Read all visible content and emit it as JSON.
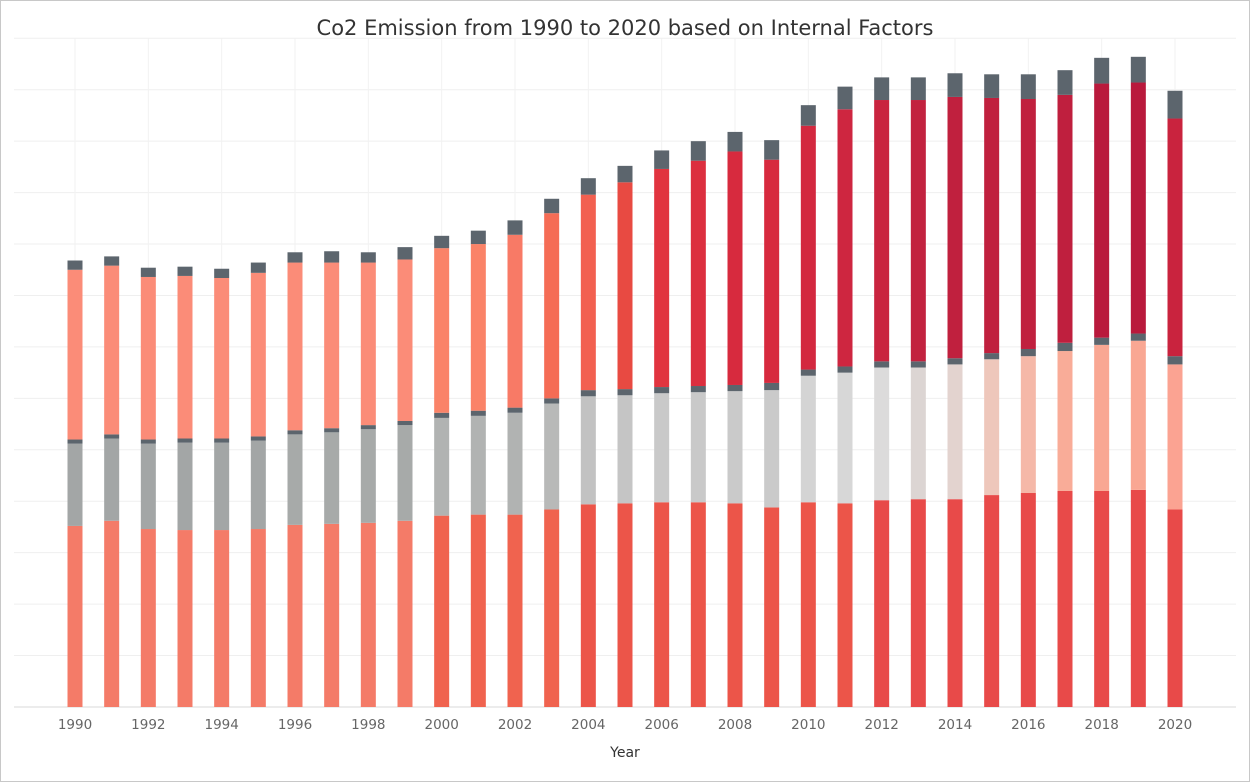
{
  "chart_data": {
    "type": "bar",
    "stacked": true,
    "title": "Co2 Emission  from 1990 to 2020 based on Internal Factors",
    "xlabel": "Year",
    "ylabel": "",
    "grid": true,
    "ylim": [
      0,
      1320
    ],
    "x_tick_labels": [
      "1990",
      "1992",
      "1994",
      "1996",
      "1998",
      "2000",
      "2002",
      "2004",
      "2006",
      "2008",
      "2010",
      "2012",
      "2014",
      "2016",
      "2018",
      "2020"
    ],
    "categories": [
      "1990",
      "1991",
      "1992",
      "1993",
      "1994",
      "1995",
      "1996",
      "1997",
      "1998",
      "1999",
      "2000",
      "2001",
      "2002",
      "2003",
      "2004",
      "2005",
      "2006",
      "2007",
      "2008",
      "2009",
      "2010",
      "2011",
      "2012",
      "2013",
      "2014",
      "2015",
      "2016",
      "2017",
      "2018",
      "2019",
      "2020"
    ],
    "series": [
      {
        "values": [
          352,
          362,
          346,
          344,
          344,
          346,
          354,
          356,
          358,
          362,
          372,
          374,
          374,
          384,
          394,
          396,
          398,
          398,
          396,
          388,
          398,
          396,
          402,
          404,
          404,
          412,
          416,
          420,
          420,
          422,
          384
        ]
      },
      {
        "values": [
          160,
          160,
          166,
          170,
          170,
          172,
          176,
          178,
          182,
          186,
          190,
          192,
          198,
          206,
          210,
          210,
          212,
          214,
          218,
          228,
          246,
          254,
          258,
          256,
          262,
          264,
          266,
          272,
          284,
          290,
          282
        ]
      },
      {
        "values": [
          8,
          8,
          8,
          8,
          8,
          8,
          8,
          8,
          8,
          8,
          10,
          10,
          10,
          10,
          12,
          12,
          12,
          12,
          12,
          14,
          12,
          12,
          12,
          12,
          12,
          12,
          14,
          16,
          14,
          14,
          16
        ]
      },
      {
        "values": [
          330,
          328,
          316,
          316,
          312,
          318,
          326,
          322,
          316,
          314,
          320,
          324,
          336,
          360,
          380,
          402,
          424,
          438,
          454,
          434,
          474,
          500,
          508,
          508,
          508,
          496,
          486,
          482,
          494,
          488,
          462
        ]
      },
      {
        "values": [
          18,
          18,
          18,
          18,
          18,
          20,
          20,
          22,
          20,
          24,
          24,
          26,
          28,
          28,
          32,
          32,
          36,
          38,
          38,
          38,
          40,
          44,
          44,
          44,
          46,
          46,
          48,
          48,
          50,
          50,
          54
        ]
      }
    ],
    "colors": [
      [
        "#f47b68",
        "#f47b68",
        "#f47b68",
        "#f47b68",
        "#f47b68",
        "#f47b68",
        "#f47b68",
        "#f47b68",
        "#f47b68",
        "#f47b68",
        "#f0634f",
        "#f0634f",
        "#f0634f",
        "#f0634f",
        "#ec5549",
        "#ec5549",
        "#ec5549",
        "#ec5549",
        "#ec5549",
        "#ec5549",
        "#ec5549",
        "#ec5549",
        "#e84a49",
        "#e84a49",
        "#e84a49",
        "#e84a49",
        "#e84a49",
        "#e84a49",
        "#e84a49",
        "#e84a49",
        "#e84a49"
      ],
      [
        "#a3a6a6",
        "#a3a6a6",
        "#a3a6a6",
        "#a3a6a6",
        "#a3a6a6",
        "#a3a6a6",
        "#a7aaa9",
        "#a7aaa9",
        "#a7aaa9",
        "#a7aaa9",
        "#b1b3b2",
        "#b1b3b2",
        "#b1b3b2",
        "#b8b9b8",
        "#c2c2c2",
        "#c5c5c5",
        "#c9c9c9",
        "#c9c9c9",
        "#cacaca",
        "#cacaca",
        "#d4d4d4",
        "#d7d7d7",
        "#dcdbdb",
        "#dcd5d3",
        "#e3d3cf",
        "#eec7bb",
        "#f5b8a8",
        "#f9ac98",
        "#f9a793",
        "#f9a793",
        "#fba392"
      ],
      [
        "#5c656d",
        "#5c656d",
        "#5c656d",
        "#5c656d",
        "#5c656d",
        "#5c656d",
        "#5c656d",
        "#5c656d",
        "#5c656d",
        "#5c656d",
        "#5c656d",
        "#5c656d",
        "#5c656d",
        "#5c656d",
        "#5c656d",
        "#5c656d",
        "#5c656d",
        "#5c656d",
        "#5c656d",
        "#5c656d",
        "#5c656d",
        "#5c656d",
        "#5c656d",
        "#5c656d",
        "#5c656d",
        "#5c656d",
        "#5c656d",
        "#5c656d",
        "#5c656d",
        "#5c656d",
        "#5c656d"
      ],
      [
        "#fb8c78",
        "#fb8c78",
        "#fb8c78",
        "#fb8c78",
        "#fb8c78",
        "#fb8c78",
        "#fb8c78",
        "#fb8c78",
        "#fb8c78",
        "#fb8c78",
        "#fa8368",
        "#fa8368",
        "#f87a66",
        "#f56c55",
        "#f26050",
        "#e84a42",
        "#e1343f",
        "#dc2f3f",
        "#d72a3e",
        "#d72a3e",
        "#d3283f",
        "#ce2640",
        "#c9243f",
        "#c2223f",
        "#c0203e",
        "#c0203e",
        "#c0203e",
        "#bf1f3e",
        "#b9193c",
        "#b9193c",
        "#c9233e"
      ],
      [
        "#5c656d",
        "#5c656d",
        "#5c656d",
        "#5c656d",
        "#5c656d",
        "#5c656d",
        "#5c656d",
        "#5c656d",
        "#5c656d",
        "#5c656d",
        "#5c656d",
        "#5c656d",
        "#5c656d",
        "#5c656d",
        "#5c656d",
        "#5c656d",
        "#5c656d",
        "#5c656d",
        "#5c656d",
        "#5c656d",
        "#5c656d",
        "#5c656d",
        "#5c656d",
        "#5c656d",
        "#5c656d",
        "#5c656d",
        "#5c656d",
        "#5c656d",
        "#5c656d",
        "#5c656d",
        "#5c656d"
      ]
    ]
  }
}
